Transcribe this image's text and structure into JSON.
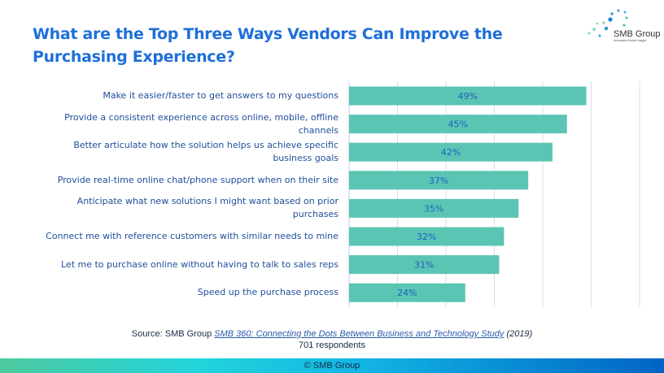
{
  "title": "What are the Top Three Ways Vendors Can Improve the Purchasing Experience?",
  "logo": {
    "name": "SMB Group",
    "tagline": "Actionable Market Insight"
  },
  "colors": {
    "bar": "#5BC5B4",
    "label": "#1F4E9A",
    "title": "#1E6FD9",
    "grid": "#D5DCF5"
  },
  "chart_data": {
    "type": "bar",
    "orientation": "horizontal",
    "categories": [
      "Make it easier/faster to get answers to my questions",
      "Provide a consistent experience across online, mobile, offline channels",
      "Better articulate how the solution helps us achieve specific business goals",
      "Provide real-time online chat/phone support when on their site",
      "Anticipate what new solutions I might want based on prior purchases",
      "Connect me with reference customers with similar needs to mine",
      "Let me to purchase online without having to talk to sales reps",
      "Speed up the purchase process"
    ],
    "values": [
      49,
      45,
      42,
      37,
      35,
      32,
      31,
      24
    ],
    "data_labels": [
      "49%",
      "45%",
      "42%",
      "37%",
      "35%",
      "32%",
      "31%",
      "24%"
    ],
    "xlim": [
      0,
      60
    ],
    "grid": true,
    "unit": "%"
  },
  "source": {
    "prefix": "Source: SMB Group ",
    "link": "SMB 360: Connecting the Dots Between Business and Technology Study",
    "suffix": " (2019)",
    "respondents": "701 respondents"
  },
  "footer": "© SMB Group"
}
